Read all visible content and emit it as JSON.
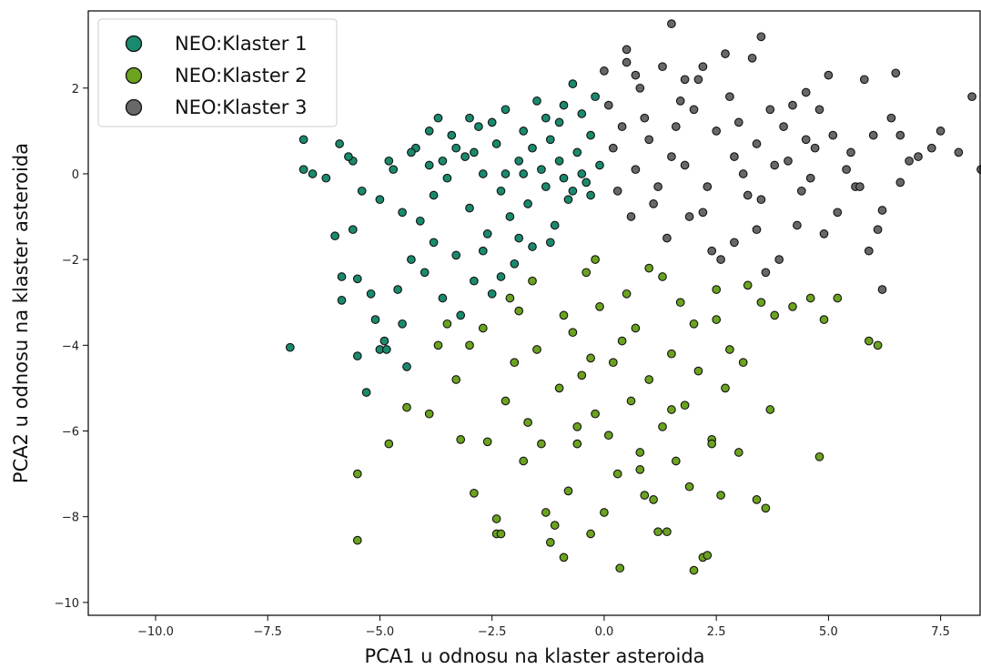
{
  "chart_data": {
    "type": "scatter",
    "title": "",
    "xlabel": "PCA1 u odnosu na klaster asteroida",
    "ylabel": "PCA2 u odnosu na klaster asteroida",
    "xlim": [
      -11.5,
      8.4
    ],
    "ylim": [
      -10.3,
      3.8
    ],
    "xticks": [
      {
        "value": -10.0,
        "label": "−10.0"
      },
      {
        "value": -7.5,
        "label": "−7.5"
      },
      {
        "value": -5.0,
        "label": "−5.0"
      },
      {
        "value": -2.5,
        "label": "−2.5"
      },
      {
        "value": 0.0,
        "label": "0.0"
      },
      {
        "value": 2.5,
        "label": "2.5"
      },
      {
        "value": 5.0,
        "label": "5.0"
      },
      {
        "value": 7.5,
        "label": "7.5"
      }
    ],
    "yticks": [
      {
        "value": -10,
        "label": "−10"
      },
      {
        "value": -8,
        "label": "−8"
      },
      {
        "value": -6,
        "label": "−6"
      },
      {
        "value": -4,
        "label": "−4"
      },
      {
        "value": -2,
        "label": "−2"
      },
      {
        "value": 0,
        "label": "0"
      },
      {
        "value": 2,
        "label": "2"
      }
    ],
    "grid": false,
    "legend": {
      "position": "top-left"
    },
    "series": [
      {
        "name": "NEO:Klaster 1",
        "color": "#1a8a6e",
        "points": [
          [
            -7.0,
            -4.05
          ],
          [
            -6.7,
            0.8
          ],
          [
            -6.7,
            0.1
          ],
          [
            -6.5,
            0.0
          ],
          [
            -6.2,
            -0.1
          ],
          [
            -6.0,
            -1.45
          ],
          [
            -5.9,
            0.7
          ],
          [
            -5.85,
            -2.4
          ],
          [
            -5.85,
            -2.95
          ],
          [
            -5.6,
            0.3
          ],
          [
            -5.6,
            -1.3
          ],
          [
            -5.5,
            -2.45
          ],
          [
            -5.5,
            -4.25
          ],
          [
            -5.4,
            -0.4
          ],
          [
            -5.3,
            -5.1
          ],
          [
            -5.2,
            -2.8
          ],
          [
            -5.1,
            -3.4
          ],
          [
            -5.0,
            -4.1
          ],
          [
            -5.0,
            -0.6
          ],
          [
            -4.9,
            -3.9
          ],
          [
            -4.85,
            -4.1
          ],
          [
            -4.8,
            0.3
          ],
          [
            -4.6,
            -2.7
          ],
          [
            -4.5,
            -0.9
          ],
          [
            -4.5,
            -3.5
          ],
          [
            -4.4,
            -4.5
          ],
          [
            -4.3,
            -2.0
          ],
          [
            -4.2,
            0.6
          ],
          [
            -4.1,
            -1.1
          ],
          [
            -4.0,
            -2.3
          ],
          [
            -3.9,
            0.2
          ],
          [
            -3.8,
            -0.5
          ],
          [
            -3.8,
            -1.6
          ],
          [
            -3.7,
            1.3
          ],
          [
            -3.6,
            -2.9
          ],
          [
            -3.5,
            -0.1
          ],
          [
            -3.4,
            0.9
          ],
          [
            -3.3,
            -1.9
          ],
          [
            -3.2,
            -3.3
          ],
          [
            -3.1,
            0.4
          ],
          [
            -3.0,
            -0.8
          ],
          [
            -2.9,
            -2.5
          ],
          [
            -2.8,
            1.1
          ],
          [
            -2.7,
            0.0
          ],
          [
            -2.6,
            -1.4
          ],
          [
            -2.5,
            -2.8
          ],
          [
            -2.4,
            0.7
          ],
          [
            -2.3,
            -0.4
          ],
          [
            -2.2,
            1.5
          ],
          [
            -2.1,
            -1.0
          ],
          [
            -2.0,
            -2.1
          ],
          [
            -1.9,
            0.3
          ],
          [
            -1.8,
            1.0
          ],
          [
            -1.7,
            -0.7
          ],
          [
            -1.6,
            -1.7
          ],
          [
            -1.5,
            1.7
          ],
          [
            -1.4,
            0.1
          ],
          [
            -1.3,
            -0.3
          ],
          [
            -1.2,
            0.8
          ],
          [
            -1.1,
            -1.2
          ],
          [
            -1.0,
            1.2
          ],
          [
            -0.9,
            -0.1
          ],
          [
            -0.8,
            -0.6
          ],
          [
            -0.7,
            2.1
          ],
          [
            -0.6,
            0.5
          ],
          [
            -0.5,
            1.4
          ],
          [
            -0.4,
            -0.2
          ],
          [
            -0.3,
            0.9
          ],
          [
            -0.2,
            1.8
          ],
          [
            -0.1,
            0.2
          ],
          [
            -5.7,
            0.4
          ],
          [
            -4.7,
            0.1
          ],
          [
            -3.9,
            1.0
          ],
          [
            -3.3,
            0.6
          ],
          [
            -2.9,
            0.5
          ],
          [
            -2.5,
            1.2
          ],
          [
            -2.2,
            0.0
          ],
          [
            -1.9,
            -1.5
          ],
          [
            -1.6,
            0.6
          ],
          [
            -1.3,
            1.3
          ],
          [
            -1.0,
            0.3
          ],
          [
            -0.7,
            -0.4
          ],
          [
            -0.5,
            0.0
          ],
          [
            -4.3,
            0.5
          ],
          [
            -3.6,
            0.3
          ],
          [
            -3.0,
            1.3
          ],
          [
            -2.7,
            -1.8
          ],
          [
            -2.3,
            -2.4
          ],
          [
            -1.8,
            0.0
          ],
          [
            -1.2,
            -1.6
          ],
          [
            -0.9,
            1.6
          ],
          [
            -0.3,
            -0.5
          ]
        ]
      },
      {
        "name": "NEO:Klaster 2",
        "color": "#6ba31f",
        "points": [
          [
            -5.5,
            -8.55
          ],
          [
            -5.5,
            -7.0
          ],
          [
            -4.8,
            -6.3
          ],
          [
            -4.4,
            -5.45
          ],
          [
            -3.9,
            -5.6
          ],
          [
            -3.7,
            -4.0
          ],
          [
            -3.5,
            -3.5
          ],
          [
            -3.3,
            -4.8
          ],
          [
            -3.0,
            -4.0
          ],
          [
            -2.9,
            -7.45
          ],
          [
            -2.6,
            -6.25
          ],
          [
            -2.4,
            -8.05
          ],
          [
            -2.4,
            -8.4
          ],
          [
            -2.3,
            -8.4
          ],
          [
            -2.2,
            -5.3
          ],
          [
            -2.0,
            -4.4
          ],
          [
            -1.9,
            -3.2
          ],
          [
            -1.7,
            -5.8
          ],
          [
            -1.5,
            -4.1
          ],
          [
            -1.4,
            -6.3
          ],
          [
            -1.3,
            -7.9
          ],
          [
            -1.2,
            -8.6
          ],
          [
            -1.1,
            -8.2
          ],
          [
            -1.0,
            -5.0
          ],
          [
            -0.9,
            -8.95
          ],
          [
            -0.8,
            -7.4
          ],
          [
            -0.7,
            -3.7
          ],
          [
            -0.6,
            -6.3
          ],
          [
            -0.5,
            -4.7
          ],
          [
            -0.4,
            -2.3
          ],
          [
            -0.3,
            -8.4
          ],
          [
            -0.2,
            -5.6
          ],
          [
            -0.1,
            -3.1
          ],
          [
            0.0,
            -7.9
          ],
          [
            0.1,
            -6.1
          ],
          [
            0.2,
            -4.4
          ],
          [
            0.3,
            -7.0
          ],
          [
            0.35,
            -9.2
          ],
          [
            0.5,
            -2.8
          ],
          [
            0.6,
            -5.3
          ],
          [
            0.7,
            -3.6
          ],
          [
            0.8,
            -6.5
          ],
          [
            0.9,
            -7.5
          ],
          [
            1.0,
            -2.2
          ],
          [
            1.1,
            -7.6
          ],
          [
            1.2,
            -8.35
          ],
          [
            1.3,
            -5.9
          ],
          [
            1.4,
            -8.35
          ],
          [
            1.5,
            -4.2
          ],
          [
            1.6,
            -6.7
          ],
          [
            1.7,
            -3.0
          ],
          [
            1.8,
            -5.4
          ],
          [
            1.9,
            -7.3
          ],
          [
            2.0,
            -9.25
          ],
          [
            2.1,
            -4.6
          ],
          [
            2.2,
            -8.95
          ],
          [
            2.3,
            -8.9
          ],
          [
            2.4,
            -6.2
          ],
          [
            2.5,
            -3.4
          ],
          [
            2.6,
            -7.5
          ],
          [
            2.7,
            -5.0
          ],
          [
            2.8,
            -4.1
          ],
          [
            3.0,
            -6.5
          ],
          [
            3.2,
            -2.6
          ],
          [
            3.4,
            -7.6
          ],
          [
            3.6,
            -7.8
          ],
          [
            3.7,
            -5.5
          ],
          [
            3.8,
            -3.3
          ],
          [
            4.2,
            -3.1
          ],
          [
            4.6,
            -2.9
          ],
          [
            4.8,
            -6.6
          ],
          [
            4.9,
            -3.4
          ],
          [
            5.2,
            -2.9
          ],
          [
            5.9,
            -3.9
          ],
          [
            6.1,
            -4.0
          ],
          [
            -2.7,
            -3.6
          ],
          [
            -2.1,
            -2.9
          ],
          [
            -1.6,
            -2.5
          ],
          [
            -0.9,
            -3.3
          ],
          [
            -0.2,
            -2.0
          ],
          [
            0.4,
            -3.9
          ],
          [
            1.0,
            -4.8
          ],
          [
            1.5,
            -5.5
          ],
          [
            2.0,
            -3.5
          ],
          [
            2.5,
            -2.7
          ],
          [
            3.1,
            -4.4
          ],
          [
            3.5,
            -3.0
          ],
          [
            -3.2,
            -6.2
          ],
          [
            -1.8,
            -6.7
          ],
          [
            -0.6,
            -5.9
          ],
          [
            0.8,
            -6.9
          ],
          [
            2.4,
            -6.3
          ],
          [
            1.3,
            -2.4
          ],
          [
            -0.3,
            -4.3
          ]
        ]
      },
      {
        "name": "NEO:Klaster 3",
        "color": "#686868",
        "points": [
          [
            1.5,
            3.5
          ],
          [
            3.5,
            3.2
          ],
          [
            8.4,
            0.1
          ],
          [
            8.2,
            1.8
          ],
          [
            7.9,
            0.5
          ],
          [
            7.5,
            1.0
          ],
          [
            7.3,
            0.6
          ],
          [
            6.8,
            0.3
          ],
          [
            6.6,
            0.9
          ],
          [
            6.6,
            -0.2
          ],
          [
            6.5,
            2.35
          ],
          [
            6.2,
            -0.85
          ],
          [
            6.2,
            -2.7
          ],
          [
            6.1,
            -1.3
          ],
          [
            6.0,
            0.9
          ],
          [
            5.9,
            -1.8
          ],
          [
            5.8,
            2.2
          ],
          [
            5.6,
            -0.3
          ],
          [
            5.5,
            0.5
          ],
          [
            5.2,
            -0.9
          ],
          [
            5.0,
            2.3
          ],
          [
            4.9,
            -1.4
          ],
          [
            4.7,
            0.6
          ],
          [
            4.5,
            1.9
          ],
          [
            4.3,
            -1.2
          ],
          [
            4.1,
            0.3
          ],
          [
            3.9,
            -2.0
          ],
          [
            3.7,
            1.5
          ],
          [
            3.5,
            -0.6
          ],
          [
            3.3,
            2.7
          ],
          [
            3.1,
            0.0
          ],
          [
            2.9,
            -1.6
          ],
          [
            2.7,
            2.8
          ],
          [
            2.5,
            1.0
          ],
          [
            2.3,
            -0.3
          ],
          [
            2.1,
            2.2
          ],
          [
            1.9,
            -1.0
          ],
          [
            1.7,
            1.7
          ],
          [
            1.5,
            0.4
          ],
          [
            1.3,
            2.5
          ],
          [
            1.1,
            -0.7
          ],
          [
            0.9,
            1.3
          ],
          [
            0.7,
            0.1
          ],
          [
            0.5,
            2.6
          ],
          [
            0.3,
            -0.4
          ],
          [
            0.1,
            1.6
          ],
          [
            0.0,
            2.4
          ],
          [
            0.5,
            2.9
          ],
          [
            0.7,
            2.3
          ],
          [
            1.8,
            2.2
          ],
          [
            2.2,
            2.5
          ],
          [
            2.8,
            1.8
          ],
          [
            3.4,
            0.7
          ],
          [
            4.0,
            1.1
          ],
          [
            4.4,
            -0.4
          ],
          [
            4.8,
            1.5
          ],
          [
            0.2,
            0.6
          ],
          [
            0.6,
            -1.0
          ],
          [
            1.0,
            0.8
          ],
          [
            1.4,
            -1.5
          ],
          [
            1.8,
            0.2
          ],
          [
            2.2,
            -0.9
          ],
          [
            2.6,
            -2.0
          ],
          [
            3.0,
            1.2
          ],
          [
            3.4,
            -1.3
          ],
          [
            3.8,
            0.2
          ],
          [
            4.2,
            1.6
          ],
          [
            4.6,
            -0.1
          ],
          [
            5.1,
            0.9
          ],
          [
            5.4,
            0.1
          ],
          [
            5.7,
            -0.3
          ],
          [
            6.4,
            1.3
          ],
          [
            7.0,
            0.4
          ],
          [
            3.6,
            -2.3
          ],
          [
            2.4,
            -1.8
          ],
          [
            1.2,
            -0.3
          ],
          [
            0.4,
            1.1
          ],
          [
            0.8,
            2.0
          ],
          [
            1.6,
            1.1
          ],
          [
            2.0,
            1.5
          ],
          [
            2.9,
            0.4
          ],
          [
            3.2,
            -0.5
          ],
          [
            4.5,
            0.8
          ]
        ]
      }
    ]
  }
}
